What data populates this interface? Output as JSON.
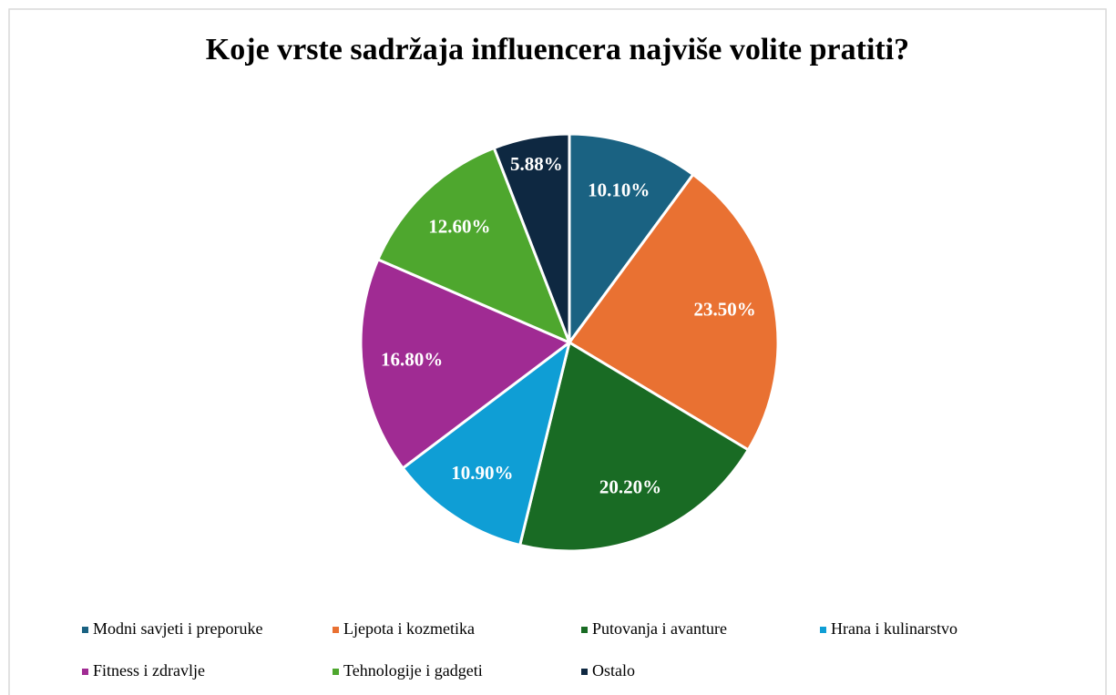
{
  "chart_data": {
    "type": "pie",
    "title": "Koje vrste sadržaja influencera najviše volite pratiti?",
    "categories": [
      "Modni savjeti i preporuke",
      "Ljepota i kozmetika",
      "Putovanja i avanture",
      "Hrana i kulinarstvo",
      "Fitness i zdravlje",
      "Tehnologije i gadgeti",
      "Ostalo"
    ],
    "values": [
      10.1,
      23.5,
      20.2,
      10.9,
      16.8,
      12.6,
      5.88
    ],
    "value_labels": [
      "10.10%",
      "23.50%",
      "20.20%",
      "10.90%",
      "16.80%",
      "12.60%",
      "5.88%"
    ],
    "colors": [
      "#1a6282",
      "#e97132",
      "#196b24",
      "#0f9ed5",
      "#a02b93",
      "#4ea72e",
      "#0e2841"
    ],
    "legend": "bottom"
  }
}
